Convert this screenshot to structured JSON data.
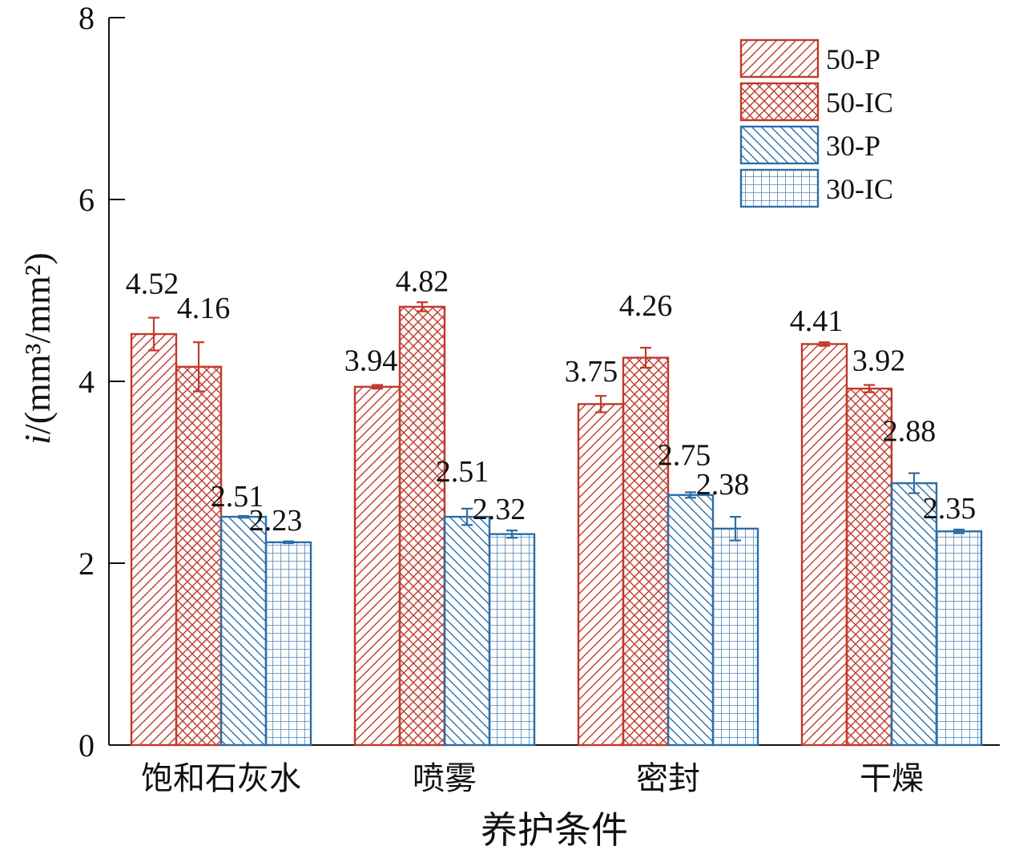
{
  "chart_data": {
    "type": "bar",
    "categories": [
      "饱和石灰水",
      "喷雾",
      "密封",
      "干燥"
    ],
    "series": [
      {
        "name": "50-P",
        "values": [
          4.52,
          3.94,
          3.75,
          4.41
        ],
        "errors": [
          0.18,
          0.02,
          0.09,
          0.02
        ],
        "color": "#c0392b",
        "pattern": "diagonal"
      },
      {
        "name": "50-IC",
        "values": [
          4.16,
          4.82,
          4.26,
          3.92
        ],
        "errors": [
          0.27,
          0.05,
          0.11,
          0.04
        ],
        "color": "#c0392b",
        "pattern": "crosshatch"
      },
      {
        "name": "30-P",
        "values": [
          2.51,
          2.51,
          2.75,
          2.88
        ],
        "errors": [
          0.01,
          0.09,
          0.03,
          0.11
        ],
        "color": "#2c6ea6",
        "pattern": "backdiagonal"
      },
      {
        "name": "30-IC",
        "values": [
          2.23,
          2.32,
          2.38,
          2.35
        ],
        "errors": [
          0.01,
          0.04,
          0.13,
          0.02
        ],
        "color": "#2c6ea6",
        "pattern": "grid"
      }
    ],
    "data_labels": [
      [
        "4.52",
        "4.16",
        "2.51",
        "2.23"
      ],
      [
        "3.94",
        "4.82",
        "2.51",
        "2.32"
      ],
      [
        "3.75",
        "4.26",
        "2.75",
        "2.38"
      ],
      [
        "4.41",
        "3.92",
        "2.88",
        "2.35"
      ]
    ],
    "ylim": [
      0,
      8
    ],
    "yticks": [
      0,
      2,
      4,
      6,
      8
    ],
    "ytick_labels": [
      "0",
      "2",
      "4",
      "6",
      "8"
    ],
    "xlabel": "养护条件",
    "ylabel_prefix": "i",
    "ylabel_unit": "/(mm³/mm²)",
    "legend_position": "top-right",
    "grid": false
  }
}
